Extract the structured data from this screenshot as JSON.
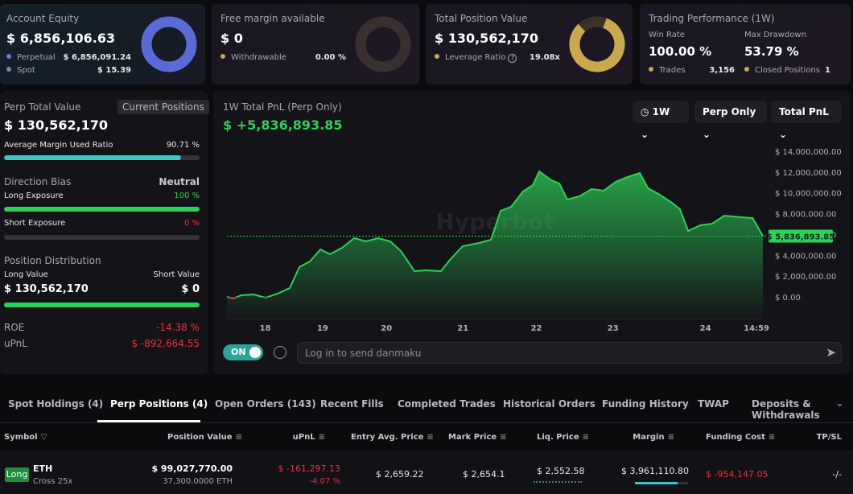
{
  "account_equity": {
    "title": "Account Equity",
    "value": "$ 6,856,106.63",
    "rows": [
      {
        "label": "Perpetual",
        "value": "$ 6,856,091.24"
      },
      {
        "label": "Spot",
        "value": "$ 15.39"
      }
    ]
  },
  "free_margin": {
    "title": "Free margin available",
    "value": "$ 0",
    "rows": [
      {
        "label": "Withdrawable",
        "value": "0.00 %"
      }
    ]
  },
  "position_value": {
    "title": "Total Position Value",
    "value": "$ 130,562,170",
    "rows": [
      {
        "label": "Leverage Ratio",
        "value": "19.08x"
      }
    ]
  },
  "performance": {
    "title": "Trading Performance (1W)",
    "win_rate_label": "Win Rate",
    "win_rate": "100.00 %",
    "drawdown_label": "Max Drawdown",
    "drawdown": "53.79 %",
    "trades_label": "Trades",
    "trades": "3,156",
    "closed_label": "Closed Positions",
    "closed": "1"
  },
  "left_panel": {
    "title": "Perp Total Value",
    "button": "Current Positions",
    "value": "$ 130,562,170",
    "margin_label": "Average Margin Used Ratio",
    "margin_ratio": "90.71 %",
    "bias_label": "Direction Bias",
    "bias": "Neutral",
    "long_label": "Long Exposure",
    "long": "100 %",
    "short_label": "Short Exposure",
    "short": "0 %",
    "dist_label": "Position Distribution",
    "long_value_label": "Long Value",
    "short_value_label": "Short Value",
    "long_value": "$ 130,562,170",
    "short_value": "$ 0",
    "roe_label": "ROE",
    "roe": "-14.38 %",
    "upnl_label": "uPnL",
    "upnl": "$ -892,664.55"
  },
  "pnl_chart": {
    "type": "line",
    "title": "1W Total PnL (Perp Only)",
    "headline": "$ +5,836,893.85",
    "controls": [
      "1W",
      "Perp Only",
      "Total PnL"
    ],
    "watermark": "Hyperbot",
    "last_label": "$ 5,836,893.85",
    "toggle": "ON",
    "input_placeholder": "Log in to send danmaku",
    "color": "#2ed158",
    "negative_color": "#e8323c",
    "xlim": [
      0,
      168
    ],
    "xticks": [
      {
        "value": 12,
        "label": "18"
      },
      {
        "value": 30,
        "label": "19"
      },
      {
        "value": 50,
        "label": "20"
      },
      {
        "value": 74,
        "label": "21"
      },
      {
        "value": 97,
        "label": "22"
      },
      {
        "value": 121,
        "label": "23"
      },
      {
        "value": 150,
        "label": "24"
      },
      {
        "value": 166,
        "label": "14:59"
      }
    ],
    "ylim": [
      -2000000,
      16000000
    ],
    "yticks": [
      {
        "value": 14000000,
        "label": "$ 14,000,000.00"
      },
      {
        "value": 12000000,
        "label": "$ 12,000,000.00"
      },
      {
        "value": 10000000,
        "label": "$ 10,000,000.00"
      },
      {
        "value": 8000000,
        "label": "$ 8,000,000.00"
      },
      {
        "value": 6000000,
        "label": "$ 6,000,000.00"
      },
      {
        "value": 4000000,
        "label": "$ 4,000,000.00"
      },
      {
        "value": 2000000,
        "label": "$ 2,000,000.00"
      },
      {
        "value": 0,
        "label": "$ 0.00"
      }
    ],
    "x": [
      0,
      2,
      4.5,
      8.3,
      12.1,
      15.9,
      19.7,
      22.7,
      26,
      29.3,
      32.3,
      36.1,
      39.9,
      43.6,
      47.4,
      51.2,
      54.5,
      58.8,
      62.6,
      67.1,
      70.1,
      73.9,
      79,
      82.8,
      85.8,
      89.1,
      92.8,
      95.9,
      97.9,
      101.7,
      104.2,
      106.7,
      110.5,
      114.3,
      118.1,
      121.9,
      125.6,
      129.4,
      132,
      135.7,
      139.5,
      142,
      144.6,
      148.4,
      152.1,
      155.9,
      161,
      164.8,
      168
    ],
    "values": [
      0,
      -155000,
      155000,
      232000,
      -77000,
      309000,
      851000,
      2862000,
      3403000,
      4564000,
      4099000,
      4718000,
      5646000,
      5337000,
      5646000,
      5337000,
      4409000,
      2475000,
      2552000,
      2475000,
      3635000,
      4873000,
      5182000,
      5492000,
      8276000,
      8663000,
      10133000,
      10751000,
      12066000,
      11215000,
      10906000,
      9359000,
      9669000,
      10365000,
      10210000,
      11061000,
      11525000,
      11912000,
      10442000,
      9823000,
      9050000,
      8431000,
      6343000,
      6884000,
      7039000,
      7812000,
      7657000,
      7580000,
      5836893.85
    ]
  },
  "tabs": [
    "Spot Holdings (4)",
    "Perp Positions (4)",
    "Open Orders (143)",
    "Recent Fills",
    "Completed Trades",
    "Historical Orders",
    "Funding History",
    "TWAP",
    "Deposits & Withdrawals"
  ],
  "table": {
    "headers": [
      "Symbol",
      "Position Value",
      "uPnL",
      "Entry Avg. Price",
      "Mark Price",
      "Liq. Price",
      "Margin",
      "Funding Cost",
      "TP/SL"
    ],
    "rows": [
      {
        "side": "Long",
        "symbol": "ETH",
        "mode": "Cross 25x",
        "position_value": "$ 99,027,770.00",
        "size": "37,300.0000 ETH",
        "upnl": "$ -161,297.13",
        "upnl_pct": "-4.07 %",
        "entry": "$ 2,659.22",
        "mark": "$ 2,654.1",
        "liq": "$ 2,552.58",
        "margin": "$ 3,961,110.80",
        "funding": "$ -954,147.05",
        "tpsl": "-/-"
      }
    ]
  }
}
